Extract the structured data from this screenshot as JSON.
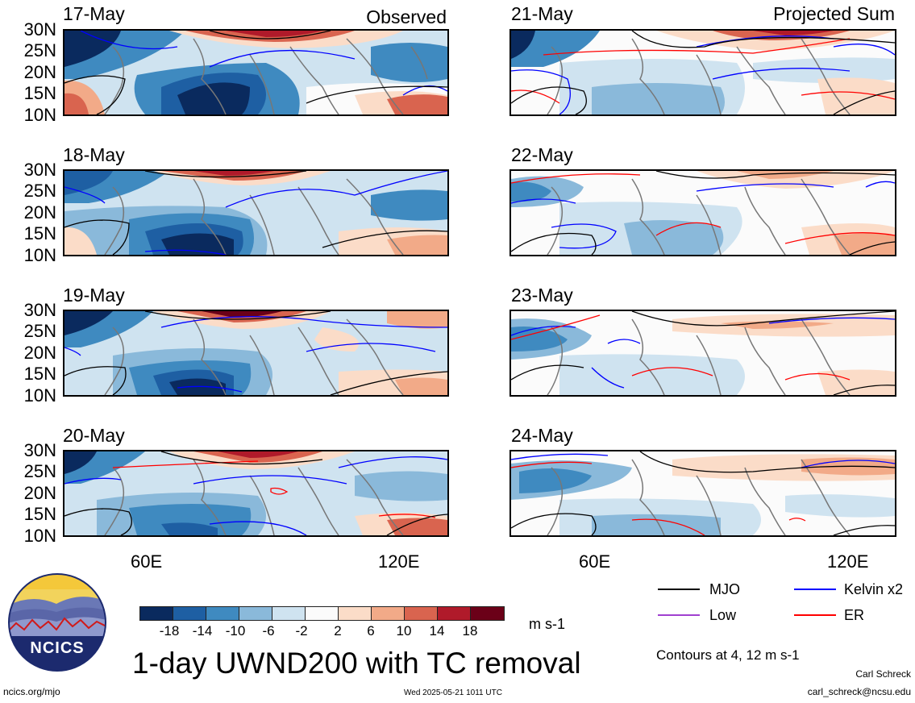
{
  "headings": {
    "left": "Observed",
    "right": "Projected Sum"
  },
  "left_dates": [
    "17-May",
    "18-May",
    "19-May",
    "20-May"
  ],
  "right_dates": [
    "21-May",
    "22-May",
    "23-May",
    "24-May"
  ],
  "lat_labels": [
    "30N",
    "25N",
    "20N",
    "15N",
    "10N"
  ],
  "lon_labels": [
    "60E",
    "120E"
  ],
  "colorbar": {
    "colors": [
      "#0a2a5e",
      "#1e5fa3",
      "#3f8ac0",
      "#8ab9da",
      "#cfe3f0",
      "#fbfbfb",
      "#fbdcc8",
      "#f2aa88",
      "#d9644f",
      "#b01a2a",
      "#6b0018"
    ],
    "ticks": [
      "-18",
      "-14",
      "-10",
      "-6",
      "-2",
      "2",
      "6",
      "10",
      "14",
      "18"
    ],
    "units": "m s-1"
  },
  "legend": {
    "items": [
      {
        "label": "MJO",
        "color": "#000000"
      },
      {
        "label": "Kelvin x2",
        "color": "#0000ff"
      },
      {
        "label": "Low",
        "color": "#a040d0"
      },
      {
        "label": "ER",
        "color": "#ff0000"
      }
    ],
    "contour_note": "Contours at 4, 12 m s-1"
  },
  "title": "1-day UWND200 with TC removal",
  "logo_text": "NCICS",
  "footer": {
    "url": "ncics.org/mjo",
    "timestamp": "Wed 2025-05-21 1011 UTC",
    "author": "Carl Schreck",
    "email": "carl_schreck@ncsu.edu"
  }
}
